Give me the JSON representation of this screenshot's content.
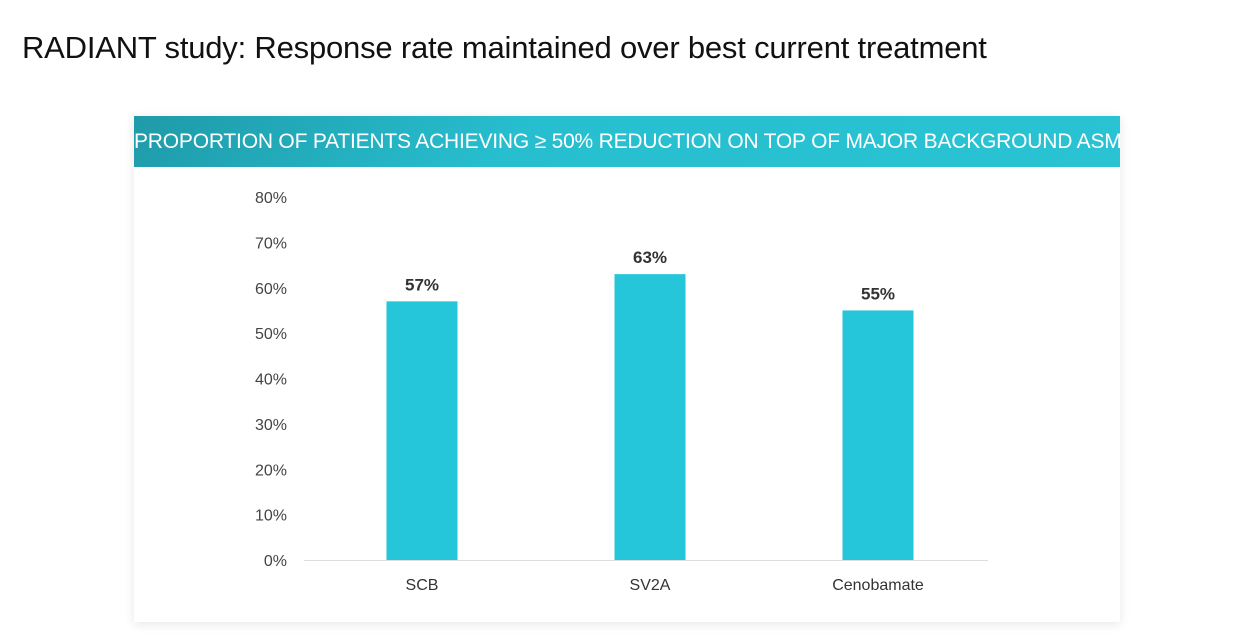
{
  "slide": {
    "title": "RADIANT study: Response rate maintained over best current treatment"
  },
  "chart_data": {
    "type": "bar",
    "title": "PROPORTION OF PATIENTS ACHIEVING ≥ 50% REDUCTION ON TOP OF MAJOR BACKGROUND ASM",
    "categories": [
      "SCB",
      "SV2A",
      "Cenobamate"
    ],
    "values": [
      57,
      63,
      55
    ],
    "data_labels": [
      "57%",
      "63%",
      "55%"
    ],
    "xlabel": "",
    "ylabel": "",
    "ylim": [
      0,
      80
    ],
    "yticks": [
      0,
      10,
      20,
      30,
      40,
      50,
      60,
      70,
      80
    ],
    "ytick_labels": [
      "0%",
      "10%",
      "20%",
      "30%",
      "40%",
      "50%",
      "60%",
      "70%",
      "80%"
    ],
    "grid": false,
    "legend": "none",
    "bar_color": "#26c6da"
  }
}
